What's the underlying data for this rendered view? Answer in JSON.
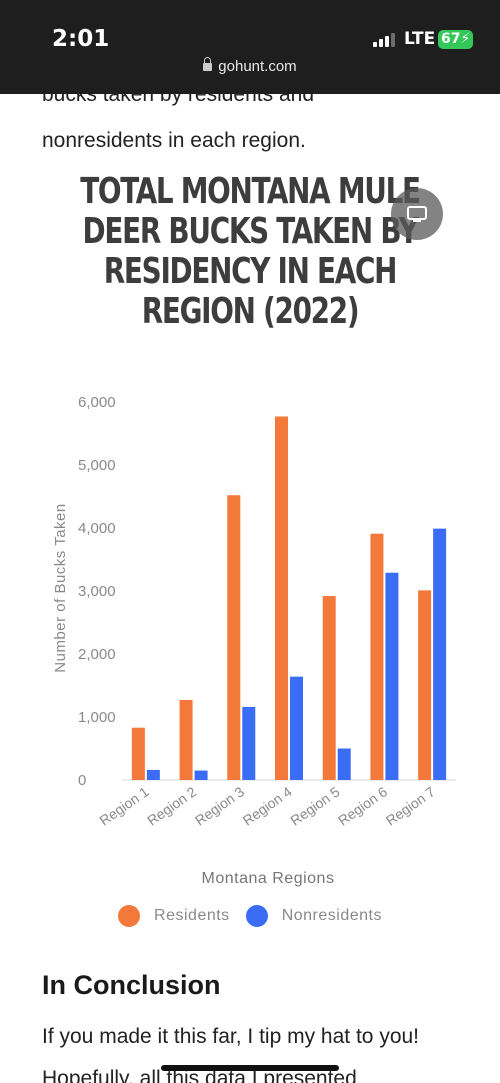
{
  "status_bar": {
    "time": "2:01",
    "network": "LTE",
    "battery": "67"
  },
  "browser": {
    "url": "gohunt.com"
  },
  "article": {
    "intro_partial": "bucks taken by residents and",
    "intro_line": "nonresidents in each region.",
    "section_heading": "In Conclusion",
    "conclusion_text": "If you made it this far, I tip my hat to you! Hopefully, all this data I presented"
  },
  "chart_data": {
    "type": "bar",
    "title": "TOTAL MONTANA MULE DEER BUCKS TAKEN BY RESIDENCY IN EACH REGION (2022)",
    "xlabel": "Montana Regions",
    "ylabel": "Number of Bucks Taken",
    "ylim": [
      0,
      6000
    ],
    "yticks": [
      "0",
      "1,000",
      "2,000",
      "3,000",
      "4,000",
      "5,000",
      "6,000"
    ],
    "categories": [
      "Region 1",
      "Region 2",
      "Region 3",
      "Region 4",
      "Region 5",
      "Region 6",
      "Region 7"
    ],
    "series": [
      {
        "name": "Residents",
        "color": "#f2793a",
        "values": [
          830,
          1270,
          4520,
          5770,
          2920,
          3910,
          3010
        ]
      },
      {
        "name": "Nonresidents",
        "color": "#3b6cf5",
        "values": [
          160,
          150,
          1160,
          1640,
          500,
          3290,
          3990
        ]
      }
    ],
    "legend_position": "bottom",
    "grid": false
  },
  "icons": {
    "lock": "lock-icon",
    "floating": "picture-in-picture-icon"
  }
}
